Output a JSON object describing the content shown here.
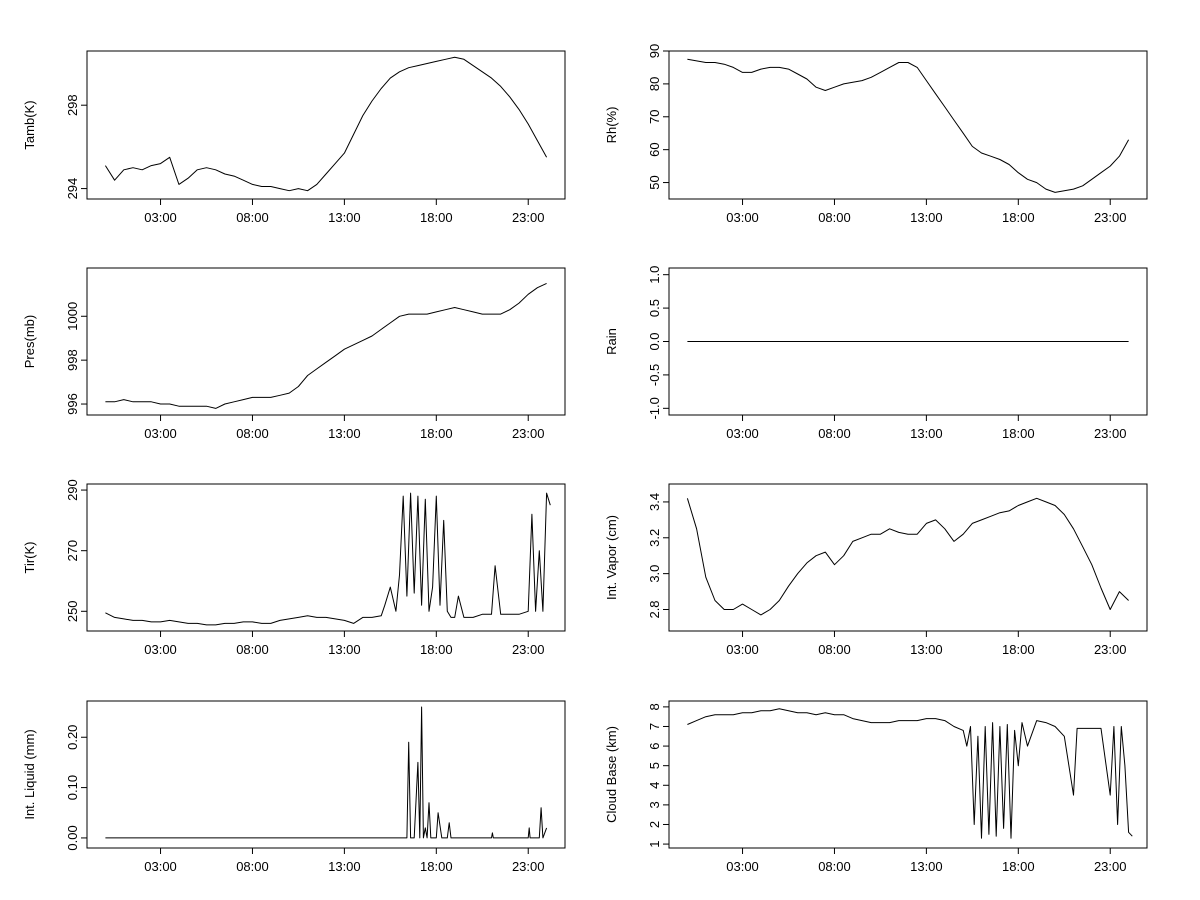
{
  "chart_data": [
    {
      "type": "line",
      "title": "",
      "xlabel": "",
      "ylabel": "Tamb(K)",
      "xlim": [
        -1.0,
        25.0
      ],
      "ylim": [
        293.5,
        300.6
      ],
      "x_ticks": [
        "03:00",
        "08:00",
        "13:00",
        "18:00",
        "23:00"
      ],
      "y_ticks": [
        "294",
        "298"
      ],
      "grid": false,
      "series": [
        {
          "x": [
            0,
            0.5,
            1,
            1.5,
            2,
            2.5,
            3,
            3.5,
            4,
            4.5,
            5,
            5.5,
            6,
            6.5,
            7,
            7.5,
            8,
            8.5,
            9,
            9.5,
            10,
            10.5,
            11,
            11.5,
            12,
            12.5,
            13,
            13.5,
            14,
            14.5,
            15,
            15.5,
            16,
            16.5,
            17,
            17.5,
            18,
            18.5,
            19,
            19.5,
            20,
            20.5,
            21,
            21.5,
            22,
            22.5,
            23,
            23.5,
            24
          ],
          "y": [
            295.1,
            294.4,
            294.9,
            295.0,
            294.9,
            295.1,
            295.2,
            295.5,
            294.2,
            294.5,
            294.9,
            295.0,
            294.9,
            294.7,
            294.6,
            294.4,
            294.2,
            294.1,
            294.1,
            294.0,
            293.9,
            294.0,
            293.9,
            294.2,
            294.7,
            295.2,
            295.7,
            296.6,
            297.5,
            298.2,
            298.8,
            299.3,
            299.6,
            299.8,
            299.9,
            300.0,
            300.1,
            300.2,
            300.3,
            300.2,
            299.9,
            299.6,
            299.3,
            298.9,
            298.4,
            297.8,
            297.1,
            296.3,
            295.5
          ]
        }
      ]
    },
    {
      "type": "line",
      "title": "",
      "xlabel": "",
      "ylabel": "Rh(%)",
      "xlim": [
        -1.0,
        25.0
      ],
      "ylim": [
        45,
        90
      ],
      "x_ticks": [
        "03:00",
        "08:00",
        "13:00",
        "18:00",
        "23:00"
      ],
      "y_ticks": [
        "50",
        "60",
        "70",
        "80",
        "90"
      ],
      "grid": false,
      "series": [
        {
          "x": [
            0,
            0.5,
            1,
            1.5,
            2,
            2.5,
            3,
            3.5,
            4,
            4.5,
            5,
            5.5,
            6,
            6.5,
            7,
            7.5,
            8,
            8.5,
            9,
            9.5,
            10,
            10.5,
            11,
            11.5,
            12,
            12.5,
            13,
            13.5,
            14,
            14.5,
            15,
            15.5,
            16,
            16.5,
            17,
            17.5,
            18,
            18.5,
            19,
            19.5,
            20,
            20.5,
            21,
            21.5,
            22,
            22.5,
            23,
            23.5,
            24
          ],
          "y": [
            87.5,
            87,
            86.5,
            86.5,
            86,
            85,
            83.5,
            83.5,
            84.5,
            85,
            85,
            84.5,
            83,
            81.5,
            79,
            78,
            79,
            80,
            80.5,
            81,
            82,
            83.5,
            85,
            86.5,
            86.5,
            85,
            81,
            77,
            73,
            69,
            65,
            61,
            59,
            58,
            57,
            55.5,
            53,
            51,
            50,
            48,
            47,
            47.5,
            48,
            49,
            51,
            53,
            55,
            58,
            63
          ]
        }
      ]
    },
    {
      "type": "line",
      "title": "",
      "xlabel": "",
      "ylabel": "Pres(mb)",
      "xlim": [
        -1.0,
        25.0
      ],
      "ylim": [
        995.5,
        1002.2
      ],
      "x_ticks": [
        "03:00",
        "08:00",
        "13:00",
        "18:00",
        "23:00"
      ],
      "y_ticks": [
        "996",
        "998",
        "1000"
      ],
      "grid": false,
      "series": [
        {
          "x": [
            0,
            0.5,
            1,
            1.5,
            2,
            2.5,
            3,
            3.5,
            4,
            4.5,
            5,
            5.5,
            6,
            6.5,
            7,
            7.5,
            8,
            8.5,
            9,
            9.5,
            10,
            10.5,
            11,
            11.5,
            12,
            12.5,
            13,
            13.5,
            14,
            14.5,
            15,
            15.5,
            16,
            16.5,
            17,
            17.5,
            18,
            18.5,
            19,
            19.5,
            20,
            20.5,
            21,
            21.5,
            22,
            22.5,
            23,
            23.5,
            24
          ],
          "y": [
            996.1,
            996.1,
            996.2,
            996.1,
            996.1,
            996.1,
            996.0,
            996.0,
            995.9,
            995.9,
            995.9,
            995.9,
            995.8,
            996.0,
            996.1,
            996.2,
            996.3,
            996.3,
            996.3,
            996.4,
            996.5,
            996.8,
            997.3,
            997.6,
            997.9,
            998.2,
            998.5,
            998.7,
            998.9,
            999.1,
            999.4,
            999.7,
            1000.0,
            1000.1,
            1000.1,
            1000.1,
            1000.2,
            1000.3,
            1000.4,
            1000.3,
            1000.2,
            1000.1,
            1000.1,
            1000.1,
            1000.3,
            1000.6,
            1001.0,
            1001.3,
            1001.5
          ]
        }
      ]
    },
    {
      "type": "line",
      "title": "",
      "xlabel": "",
      "ylabel": "Rain",
      "xlim": [
        -1.0,
        25.0
      ],
      "ylim": [
        -1.1,
        1.1
      ],
      "x_ticks": [
        "03:00",
        "08:00",
        "13:00",
        "18:00",
        "23:00"
      ],
      "y_ticks": [
        "-1.0",
        "-0.5",
        "0.0",
        "0.5",
        "1.0"
      ],
      "grid": false,
      "series": [
        {
          "x": [
            0,
            24
          ],
          "y": [
            0,
            0
          ]
        }
      ]
    },
    {
      "type": "line",
      "title": "",
      "xlabel": "",
      "ylabel": "Tir(K)",
      "xlim": [
        -1.0,
        25.0
      ],
      "ylim": [
        243.5,
        292.0
      ],
      "x_ticks": [
        "03:00",
        "08:00",
        "13:00",
        "18:00",
        "23:00"
      ],
      "y_ticks": [
        "250",
        "270",
        "290"
      ],
      "grid": false,
      "series": [
        {
          "x": [
            0,
            0.5,
            1,
            1.5,
            2,
            2.5,
            3,
            3.5,
            4,
            4.5,
            5,
            5.5,
            6,
            6.5,
            7,
            7.5,
            8,
            8.5,
            9,
            9.5,
            10,
            10.5,
            11,
            11.5,
            12,
            12.5,
            13,
            13.5,
            14,
            14.5,
            15,
            15.2,
            15.5,
            15.8,
            16,
            16.2,
            16.4,
            16.6,
            16.8,
            17,
            17.2,
            17.4,
            17.6,
            17.8,
            18,
            18.2,
            18.4,
            18.6,
            18.8,
            19,
            19.2,
            19.5,
            20,
            20.5,
            21,
            21.2,
            21.5,
            22,
            22.5,
            23,
            23.2,
            23.4,
            23.6,
            23.8,
            24,
            24.2
          ],
          "y": [
            249.5,
            248,
            247.5,
            247,
            247,
            246.5,
            246.5,
            247,
            246.5,
            246,
            246,
            245.5,
            245.5,
            246,
            246,
            246.5,
            246.5,
            246,
            246,
            247,
            247.5,
            248,
            248.5,
            248,
            248,
            247.5,
            247,
            246,
            248,
            248,
            248.5,
            252,
            258,
            250,
            262,
            288,
            255,
            289,
            256,
            288,
            252,
            287,
            250,
            258,
            288,
            252,
            280,
            250,
            248,
            248,
            255,
            248,
            248,
            249,
            249,
            265,
            249,
            249,
            249,
            250,
            282,
            250,
            270,
            250,
            289,
            285
          ]
        }
      ]
    },
    {
      "type": "line",
      "title": "",
      "xlabel": "",
      "ylabel": "Int. Vapor (cm)",
      "xlim": [
        -1.0,
        25.0
      ],
      "ylim": [
        2.68,
        3.5
      ],
      "x_ticks": [
        "03:00",
        "08:00",
        "13:00",
        "18:00",
        "23:00"
      ],
      "y_ticks": [
        "2.8",
        "3.0",
        "3.2",
        "3.4"
      ],
      "grid": false,
      "series": [
        {
          "x": [
            0,
            0.5,
            1,
            1.5,
            2,
            2.5,
            3,
            3.5,
            4,
            4.5,
            5,
            5.5,
            6,
            6.5,
            7,
            7.5,
            8,
            8.5,
            9,
            9.5,
            10,
            10.5,
            11,
            11.5,
            12,
            12.5,
            13,
            13.5,
            14,
            14.5,
            15,
            15.5,
            16,
            16.5,
            17,
            17.5,
            18,
            18.5,
            19,
            19.5,
            20,
            20.5,
            21,
            21.5,
            22,
            22.5,
            23,
            23.5,
            24
          ],
          "y": [
            3.42,
            3.25,
            2.98,
            2.85,
            2.8,
            2.8,
            2.83,
            2.8,
            2.77,
            2.8,
            2.85,
            2.93,
            3.0,
            3.06,
            3.1,
            3.12,
            3.05,
            3.1,
            3.18,
            3.2,
            3.22,
            3.22,
            3.25,
            3.23,
            3.22,
            3.22,
            3.28,
            3.3,
            3.25,
            3.18,
            3.22,
            3.28,
            3.3,
            3.32,
            3.34,
            3.35,
            3.38,
            3.4,
            3.42,
            3.4,
            3.38,
            3.33,
            3.25,
            3.15,
            3.05,
            2.92,
            2.8,
            2.9,
            2.85
          ]
        }
      ]
    },
    {
      "type": "line",
      "title": "",
      "xlabel": "",
      "ylabel": "Int. Liquid (mm)",
      "xlim": [
        -1.0,
        25.0
      ],
      "ylim": [
        -0.02,
        0.272
      ],
      "x_ticks": [
        "03:00",
        "08:00",
        "13:00",
        "18:00",
        "23:00"
      ],
      "y_ticks": [
        "0.00",
        "0.10",
        "0.20"
      ],
      "grid": false,
      "series": [
        {
          "x": [
            0,
            16.2,
            16.4,
            16.5,
            16.6,
            16.8,
            17.0,
            17.1,
            17.2,
            17.3,
            17.4,
            17.5,
            17.6,
            17.7,
            17.8,
            18.0,
            18.1,
            18.3,
            18.6,
            18.7,
            18.8,
            21.0,
            21.05,
            21.1,
            23.0,
            23.05,
            23.1,
            23.6,
            23.7,
            23.8,
            24.0
          ],
          "y": [
            0,
            0,
            0,
            0.19,
            0,
            0,
            0.15,
            0,
            0.26,
            0,
            0.02,
            0,
            0.07,
            0,
            0,
            0,
            0.05,
            0,
            0,
            0.03,
            0,
            0,
            0.01,
            0,
            0,
            0.02,
            0,
            0,
            0.06,
            0,
            0.02
          ]
        }
      ]
    },
    {
      "type": "line",
      "title": "",
      "xlabel": "",
      "ylabel": "Cloud Base (km)",
      "xlim": [
        -1.0,
        25.0
      ],
      "ylim": [
        0.8,
        8.3
      ],
      "x_ticks": [
        "03:00",
        "08:00",
        "13:00",
        "18:00",
        "23:00"
      ],
      "y_ticks": [
        "1",
        "2",
        "3",
        "4",
        "5",
        "6",
        "7",
        "8"
      ],
      "grid": false,
      "series": [
        {
          "x": [
            0,
            0.5,
            1,
            1.5,
            2,
            2.5,
            3,
            3.5,
            4,
            4.5,
            5,
            5.5,
            6,
            6.5,
            7,
            7.5,
            8,
            8.5,
            9,
            9.5,
            10,
            10.5,
            11,
            11.5,
            12,
            12.5,
            13,
            13.5,
            14,
            14.5,
            15,
            15.2,
            15.4,
            15.6,
            15.8,
            16,
            16.2,
            16.4,
            16.6,
            16.8,
            17,
            17.2,
            17.4,
            17.6,
            17.8,
            18,
            18.2,
            18.5,
            19,
            19.5,
            20,
            20.5,
            21,
            21.2,
            21.5,
            22,
            22.5,
            23,
            23.2,
            23.4,
            23.6,
            23.8,
            24,
            24.2
          ],
          "y": [
            7.1,
            7.3,
            7.5,
            7.6,
            7.6,
            7.6,
            7.7,
            7.7,
            7.8,
            7.8,
            7.9,
            7.8,
            7.7,
            7.7,
            7.6,
            7.7,
            7.6,
            7.6,
            7.4,
            7.3,
            7.2,
            7.2,
            7.2,
            7.3,
            7.3,
            7.3,
            7.4,
            7.4,
            7.3,
            7.0,
            6.8,
            6.0,
            7.0,
            2.0,
            6.5,
            1.3,
            7.0,
            1.5,
            7.2,
            1.4,
            7.0,
            1.8,
            7.1,
            1.3,
            6.8,
            5.0,
            7.2,
            6.0,
            7.3,
            7.2,
            7.0,
            6.5,
            3.5,
            6.9,
            6.9,
            6.9,
            6.9,
            3.5,
            7.0,
            2.0,
            7.0,
            5.0,
            1.6,
            1.4
          ]
        }
      ]
    }
  ]
}
